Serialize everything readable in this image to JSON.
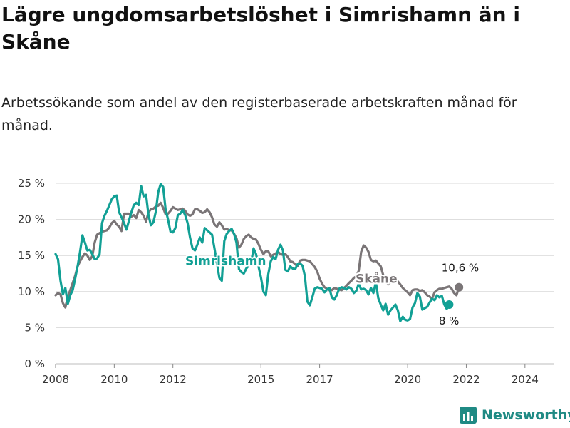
{
  "title": "Lägre ungdomsarbetslöshet i Simrishamn än i Skåne",
  "subtitle": "Arbetssökande som andel av den registerbaserade arbetskraften månad för månad.",
  "brand": {
    "name": "Newsworthy",
    "icon": "bar-chart-logo-icon"
  },
  "colors": {
    "simrishamn": "#12a095",
    "skane": "#7a7577",
    "grid": "#d9d9d9",
    "brand": "#1f8a84"
  },
  "chart_data": {
    "type": "line",
    "x_tick_labels": [
      "2008",
      "2010",
      "2012",
      "2015",
      "2017",
      "2020",
      "2022",
      "2024"
    ],
    "y_tick_labels": [
      "0 %",
      "5 %",
      "10 %",
      "15 %",
      "20 %",
      "25 %"
    ],
    "ylim": [
      0,
      25
    ],
    "grid": true,
    "x_start": "2008-01",
    "series": [
      {
        "name": "Simrishamn",
        "key": "simrishamn",
        "end_label": "8 %",
        "x_start": "2008-01",
        "values": [
          15.2,
          14.5,
          11.5,
          9.6,
          10.5,
          8.3,
          9.5,
          10.2,
          11.8,
          13.5,
          15.5,
          17.8,
          16.8,
          15.7,
          15.8,
          15.2,
          14.5,
          14.6,
          15.2,
          19.5,
          20.5,
          21.2,
          22.0,
          22.8,
          23.2,
          23.3,
          21.0,
          20.3,
          19.5,
          18.6,
          19.8,
          21.0,
          22.0,
          22.3,
          22.0,
          24.6,
          23.2,
          23.4,
          20.6,
          19.2,
          19.6,
          21.1,
          23.8,
          24.9,
          24.5,
          21.4,
          20.0,
          18.3,
          18.2,
          18.8,
          20.6,
          20.8,
          21.3,
          20.6,
          19.5,
          17.5,
          16.0,
          15.7,
          16.5,
          17.5,
          16.8,
          18.8,
          18.5,
          18.2,
          17.9,
          16.0,
          13.9,
          11.9,
          11.5,
          17.0,
          18.0,
          18.4,
          18.7,
          18.0,
          16.8,
          13.1,
          12.7,
          12.5,
          13.2,
          13.6,
          14.0,
          16.0,
          15.2,
          13.5,
          12.0,
          10.0,
          9.5,
          12.4,
          14.2,
          14.8,
          14.5,
          15.8,
          16.5,
          15.7,
          13.0,
          12.8,
          13.5,
          13.2,
          13.1,
          13.8,
          13.9,
          13.6,
          12.1,
          8.6,
          8.1,
          9.2,
          10.4,
          10.6,
          10.5,
          10.4,
          9.9,
          10.3,
          10.5,
          9.2,
          8.9,
          9.5,
          10.4,
          10.6,
          10.5,
          10.3,
          10.6,
          10.4,
          9.8,
          10.1,
          11.1,
          10.3,
          10.4,
          10.2,
          9.6,
          10.5,
          9.8,
          11.3,
          9.1,
          8.2,
          7.4,
          8.3,
          6.8,
          7.4,
          7.8,
          8.2,
          7.4,
          5.9,
          6.5,
          6.1,
          6.0,
          6.2,
          7.8,
          8.4,
          9.8,
          9.3,
          7.5,
          7.7,
          7.9,
          8.5,
          9.0,
          8.8,
          9.5,
          9.2,
          9.4,
          8.2,
          7.6,
          8.2
        ]
      },
      {
        "name": "Skåne",
        "key": "skane",
        "end_label": "10,6 %",
        "x_start": "2008-01",
        "values": [
          9.5,
          9.8,
          9.6,
          8.4,
          7.8,
          9.3,
          10.2,
          11.2,
          12.2,
          13.5,
          14.2,
          14.8,
          15.3,
          15.0,
          14.4,
          14.9,
          16.8,
          17.9,
          18.1,
          18.3,
          18.4,
          18.5,
          18.9,
          19.5,
          19.8,
          19.3,
          19.0,
          18.4,
          20.8,
          20.8,
          20.8,
          20.4,
          20.6,
          20.2,
          21.3,
          21.0,
          20.5,
          19.7,
          21.0,
          21.4,
          21.5,
          21.8,
          21.9,
          22.3,
          21.6,
          20.7,
          20.8,
          21.2,
          21.7,
          21.5,
          21.3,
          21.4,
          21.5,
          21.2,
          20.7,
          20.5,
          20.7,
          21.4,
          21.4,
          21.2,
          20.9,
          21.0,
          21.4,
          21.0,
          20.3,
          19.3,
          19.0,
          19.6,
          19.2,
          18.6,
          18.7,
          18.5,
          18.5,
          18.0,
          17.4,
          16.1,
          16.5,
          17.3,
          17.7,
          17.9,
          17.5,
          17.3,
          17.2,
          16.6,
          15.8,
          15.2,
          15.6,
          15.6,
          14.9,
          15.1,
          15.3,
          15.5,
          15.2,
          15.1,
          15.2,
          14.8,
          14.2,
          14.1,
          13.8,
          13.5,
          14.3,
          14.4,
          14.4,
          14.3,
          14.2,
          13.8,
          13.4,
          12.8,
          11.8,
          11.1,
          10.6,
          10.4,
          10.2,
          10.2,
          10.5,
          10.4,
          10.3,
          10.2,
          10.5,
          10.8,
          11.2,
          11.5,
          11.9,
          12.1,
          12.9,
          15.5,
          16.4,
          16.1,
          15.5,
          14.4,
          14.2,
          14.3,
          13.9,
          13.5,
          12.3,
          11.6,
          11.0,
          11.3,
          11.5,
          11.6,
          11.4,
          11.0,
          10.5,
          10.2,
          9.9,
          9.5,
          10.2,
          10.3,
          10.3,
          10.1,
          10.2,
          9.9,
          9.5,
          9.3,
          9.0,
          9.9,
          10.2,
          10.4,
          10.4,
          10.5,
          10.6,
          10.7,
          10.4,
          9.8,
          9.5,
          10.6
        ]
      }
    ]
  }
}
